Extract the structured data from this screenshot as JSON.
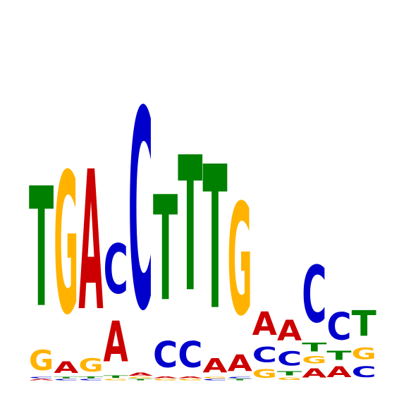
{
  "figure": {
    "type": "sequence-logo",
    "alphabet": [
      "A",
      "C",
      "G",
      "T"
    ],
    "colors": {
      "A": "#cc0000",
      "C": "#0000cc",
      "G": "#ffb300",
      "T": "#008000"
    },
    "positions": [
      {
        "index": 1,
        "letters": [
          {
            "base": "A",
            "bits": 0.02
          },
          {
            "base": "C",
            "bits": 0.02
          },
          {
            "base": "G",
            "bits": 0.33
          },
          {
            "base": "T",
            "bits": 1.96
          }
        ]
      },
      {
        "index": 2,
        "letters": [
          {
            "base": "C",
            "bits": 0.02
          },
          {
            "base": "T",
            "bits": 0.02
          },
          {
            "base": "A",
            "bits": 0.19
          },
          {
            "base": "G",
            "bits": 2.31
          }
        ]
      },
      {
        "index": 3,
        "letters": [
          {
            "base": "C",
            "bits": 0.02
          },
          {
            "base": "T",
            "bits": 0.03
          },
          {
            "base": "G",
            "bits": 0.22
          },
          {
            "base": "A",
            "bits": 2.29
          }
        ]
      },
      {
        "index": 4,
        "letters": [
          {
            "base": "G",
            "bits": 0.02
          },
          {
            "base": "T",
            "bits": 0.04
          },
          {
            "base": "A",
            "bits": 0.67
          },
          {
            "base": "C",
            "bits": 0.81
          }
        ]
      },
      {
        "index": 5,
        "letters": [
          {
            "base": "T",
            "bits": 0.02
          },
          {
            "base": "G",
            "bits": 0.02
          },
          {
            "base": "A",
            "bits": 0.05
          },
          {
            "base": "C",
            "bits": 3.26
          }
        ]
      },
      {
        "index": 6,
        "letters": [
          {
            "base": "G",
            "bits": 0.02
          },
          {
            "base": "A",
            "bits": 0.03
          },
          {
            "base": "C",
            "bits": 0.43
          },
          {
            "base": "T",
            "bits": 1.72
          }
        ]
      },
      {
        "index": 7,
        "letters": [
          {
            "base": "G",
            "bits": 0.02
          },
          {
            "base": "A",
            "bits": 0.03
          },
          {
            "base": "C",
            "bits": 0.43
          },
          {
            "base": "T",
            "bits": 2.21
          }
        ]
      },
      {
        "index": 8,
        "letters": [
          {
            "base": "C",
            "bits": 0.02
          },
          {
            "base": "G",
            "bits": 0.02
          },
          {
            "base": "A",
            "bits": 0.23
          },
          {
            "base": "T",
            "bits": 2.35
          }
        ]
      },
      {
        "index": 9,
        "letters": [
          {
            "base": "T",
            "bits": 0.02
          },
          {
            "base": "C",
            "bits": 0.02
          },
          {
            "base": "A",
            "bits": 0.27
          },
          {
            "base": "G",
            "bits": 1.83
          }
        ]
      },
      {
        "index": 10,
        "letters": [
          {
            "base": "G",
            "bits": 0.14
          },
          {
            "base": "C",
            "bits": 0.25
          },
          {
            "base": "A",
            "bits": 0.38
          }
        ]
      },
      {
        "index": 11,
        "letters": [
          {
            "base": "G",
            "bits": 0.04
          },
          {
            "base": "T",
            "bits": 0.07
          },
          {
            "base": "C",
            "bits": 0.23
          },
          {
            "base": "A",
            "bits": 0.34
          }
        ]
      },
      {
        "index": 12,
        "letters": [
          {
            "base": "A",
            "bits": 0.15
          },
          {
            "base": "G",
            "bits": 0.12
          },
          {
            "base": "T",
            "bits": 0.14
          },
          {
            "base": "C",
            "bits": 0.93
          }
        ]
      },
      {
        "index": 13,
        "letters": [
          {
            "base": "A",
            "bits": 0.18
          },
          {
            "base": "T",
            "bits": 0.15
          },
          {
            "base": "C",
            "bits": 0.45
          }
        ]
      },
      {
        "index": 14,
        "letters": [
          {
            "base": "C",
            "bits": 0.18
          },
          {
            "base": "G",
            "bits": 0.19
          },
          {
            "base": "T",
            "bits": 0.42
          }
        ]
      }
    ]
  }
}
